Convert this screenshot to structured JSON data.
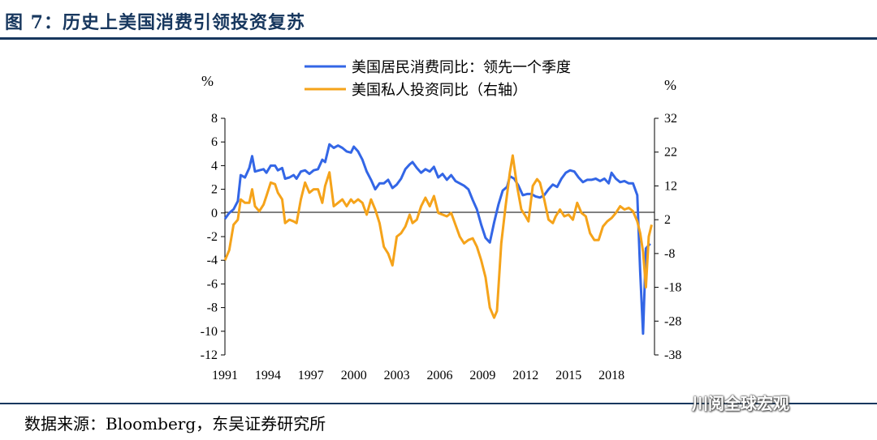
{
  "title": "图 7：历史上美国消费引领投资复苏",
  "source": "数据来源：Bloomberg，东吴证券研究所",
  "watermark": "川阅全球宏观",
  "colors": {
    "title": "#17375e",
    "consumption": "#3366e6",
    "investment": "#f5a31a"
  },
  "chart_data": {
    "type": "line",
    "title": "",
    "left_unit": "%",
    "right_unit": "%",
    "xlim": [
      1991,
      2021
    ],
    "x_ticks": [
      1991,
      1994,
      1997,
      2000,
      2003,
      2006,
      2009,
      2012,
      2015,
      2018
    ],
    "ylim_left": [
      -12,
      8
    ],
    "ylim_right": [
      -38,
      32
    ],
    "left_ticks": [
      8,
      6,
      4,
      2,
      0,
      -2,
      -4,
      -6,
      -8,
      -10,
      -12
    ],
    "right_ticks": [
      32,
      22,
      12,
      2,
      -8,
      -18,
      -28,
      -38
    ],
    "legend_position": "top-center",
    "series": [
      {
        "name": "美国居民消费同比：领先一个季度",
        "axis": "left",
        "color": "#3366e6",
        "points": [
          [
            1991.0,
            -0.5
          ],
          [
            1991.3,
            0.0
          ],
          [
            1991.6,
            0.3
          ],
          [
            1991.9,
            1.0
          ],
          [
            1992.1,
            3.2
          ],
          [
            1992.4,
            3.0
          ],
          [
            1992.7,
            3.8
          ],
          [
            1992.9,
            4.8
          ],
          [
            1993.1,
            3.5
          ],
          [
            1993.4,
            3.6
          ],
          [
            1993.7,
            3.7
          ],
          [
            1993.9,
            3.4
          ],
          [
            1994.2,
            4.0
          ],
          [
            1994.5,
            4.0
          ],
          [
            1994.7,
            3.6
          ],
          [
            1995.0,
            3.8
          ],
          [
            1995.2,
            2.9
          ],
          [
            1995.5,
            3.0
          ],
          [
            1995.8,
            3.2
          ],
          [
            1996.0,
            2.9
          ],
          [
            1996.3,
            3.5
          ],
          [
            1996.6,
            3.6
          ],
          [
            1996.9,
            3.3
          ],
          [
            1997.2,
            3.6
          ],
          [
            1997.5,
            3.7
          ],
          [
            1997.8,
            4.5
          ],
          [
            1998.0,
            4.3
          ],
          [
            1998.3,
            5.8
          ],
          [
            1998.6,
            5.5
          ],
          [
            1998.9,
            5.7
          ],
          [
            1999.2,
            5.5
          ],
          [
            1999.5,
            5.2
          ],
          [
            1999.8,
            5.1
          ],
          [
            2000.0,
            5.6
          ],
          [
            2000.3,
            5.2
          ],
          [
            2000.6,
            4.5
          ],
          [
            2000.9,
            3.5
          ],
          [
            2001.2,
            2.8
          ],
          [
            2001.5,
            2.0
          ],
          [
            2001.8,
            2.5
          ],
          [
            2002.1,
            2.5
          ],
          [
            2002.4,
            2.8
          ],
          [
            2002.7,
            2.1
          ],
          [
            2003.0,
            2.4
          ],
          [
            2003.3,
            2.9
          ],
          [
            2003.6,
            3.7
          ],
          [
            2003.9,
            4.1
          ],
          [
            2004.1,
            4.3
          ],
          [
            2004.4,
            3.8
          ],
          [
            2004.7,
            3.4
          ],
          [
            2005.0,
            3.7
          ],
          [
            2005.3,
            3.5
          ],
          [
            2005.6,
            3.9
          ],
          [
            2005.9,
            3.0
          ],
          [
            2006.2,
            3.3
          ],
          [
            2006.5,
            2.8
          ],
          [
            2006.8,
            3.2
          ],
          [
            2007.1,
            2.7
          ],
          [
            2007.4,
            2.5
          ],
          [
            2007.7,
            2.3
          ],
          [
            2008.0,
            2.0
          ],
          [
            2008.3,
            1.1
          ],
          [
            2008.6,
            0.3
          ],
          [
            2008.9,
            -1.0
          ],
          [
            2009.2,
            -2.1
          ],
          [
            2009.5,
            -2.5
          ],
          [
            2009.8,
            -0.8
          ],
          [
            2010.1,
            0.7
          ],
          [
            2010.4,
            1.9
          ],
          [
            2010.7,
            2.2
          ],
          [
            2010.9,
            3.1
          ],
          [
            2011.2,
            2.9
          ],
          [
            2011.5,
            2.3
          ],
          [
            2011.8,
            1.5
          ],
          [
            2012.1,
            1.6
          ],
          [
            2012.4,
            1.6
          ],
          [
            2012.7,
            1.4
          ],
          [
            2013.0,
            1.3
          ],
          [
            2013.3,
            1.5
          ],
          [
            2013.6,
            2.0
          ],
          [
            2013.9,
            2.4
          ],
          [
            2014.2,
            2.2
          ],
          [
            2014.5,
            2.9
          ],
          [
            2014.8,
            3.4
          ],
          [
            2015.1,
            3.6
          ],
          [
            2015.4,
            3.5
          ],
          [
            2015.7,
            3.0
          ],
          [
            2016.0,
            2.6
          ],
          [
            2016.3,
            2.8
          ],
          [
            2016.6,
            2.8
          ],
          [
            2016.9,
            2.9
          ],
          [
            2017.2,
            2.7
          ],
          [
            2017.5,
            2.9
          ],
          [
            2017.8,
            2.5
          ],
          [
            2018.0,
            3.4
          ],
          [
            2018.3,
            2.9
          ],
          [
            2018.6,
            2.6
          ],
          [
            2018.9,
            2.7
          ],
          [
            2019.2,
            2.5
          ],
          [
            2019.5,
            2.5
          ],
          [
            2019.8,
            1.5
          ],
          [
            2020.0,
            -5.0
          ],
          [
            2020.2,
            -10.2
          ],
          [
            2020.4,
            -3.0
          ],
          [
            2020.7,
            -2.6
          ]
        ]
      },
      {
        "name": "美国私人投资同比（右轴）",
        "axis": "right",
        "color": "#f5a31a",
        "points": [
          [
            1991.0,
            -10.0
          ],
          [
            1991.3,
            -7.0
          ],
          [
            1991.6,
            0.5
          ],
          [
            1991.9,
            2.0
          ],
          [
            1992.1,
            8.0
          ],
          [
            1992.4,
            7.0
          ],
          [
            1992.7,
            7.0
          ],
          [
            1992.9,
            11.0
          ],
          [
            1993.1,
            6.0
          ],
          [
            1993.4,
            4.5
          ],
          [
            1993.7,
            6.5
          ],
          [
            1993.9,
            9.0
          ],
          [
            1994.2,
            13.0
          ],
          [
            1994.5,
            12.5
          ],
          [
            1994.7,
            10.0
          ],
          [
            1995.0,
            8.0
          ],
          [
            1995.2,
            1.0
          ],
          [
            1995.5,
            2.0
          ],
          [
            1995.8,
            1.5
          ],
          [
            1996.0,
            1.0
          ],
          [
            1996.3,
            8.0
          ],
          [
            1996.6,
            13.0
          ],
          [
            1996.9,
            10.0
          ],
          [
            1997.2,
            11.0
          ],
          [
            1997.5,
            11.0
          ],
          [
            1997.8,
            7.0
          ],
          [
            1998.0,
            12.0
          ],
          [
            1998.3,
            16.0
          ],
          [
            1998.6,
            6.0
          ],
          [
            1998.9,
            7.0
          ],
          [
            1999.2,
            8.0
          ],
          [
            1999.5,
            6.0
          ],
          [
            1999.8,
            8.0
          ],
          [
            2000.0,
            7.0
          ],
          [
            2000.3,
            8.0
          ],
          [
            2000.6,
            7.0
          ],
          [
            2000.9,
            3.5
          ],
          [
            2001.2,
            8.0
          ],
          [
            2001.5,
            5.0
          ],
          [
            2001.8,
            1.0
          ],
          [
            2002.1,
            -6.0
          ],
          [
            2002.4,
            -8.0
          ],
          [
            2002.7,
            -11.5
          ],
          [
            2003.0,
            -3.0
          ],
          [
            2003.3,
            -2.0
          ],
          [
            2003.6,
            0.0
          ],
          [
            2003.9,
            3.5
          ],
          [
            2004.1,
            1.0
          ],
          [
            2004.4,
            2.0
          ],
          [
            2004.7,
            6.0
          ],
          [
            2005.0,
            8.5
          ],
          [
            2005.3,
            6.0
          ],
          [
            2005.6,
            9.0
          ],
          [
            2005.9,
            4.0
          ],
          [
            2006.2,
            3.5
          ],
          [
            2006.5,
            3.0
          ],
          [
            2006.8,
            4.0
          ],
          [
            2007.1,
            0.5
          ],
          [
            2007.4,
            -3.0
          ],
          [
            2007.7,
            -5.0
          ],
          [
            2008.0,
            -4.0
          ],
          [
            2008.3,
            -3.5
          ],
          [
            2008.6,
            -6.0
          ],
          [
            2008.9,
            -10.0
          ],
          [
            2009.2,
            -15.0
          ],
          [
            2009.5,
            -24.0
          ],
          [
            2009.8,
            -27.0
          ],
          [
            2010.0,
            -25.0
          ],
          [
            2010.3,
            -5.0
          ],
          [
            2010.6,
            6.0
          ],
          [
            2010.9,
            16.0
          ],
          [
            2011.1,
            21.0
          ],
          [
            2011.4,
            12.0
          ],
          [
            2011.7,
            5.0
          ],
          [
            2012.0,
            3.0
          ],
          [
            2012.2,
            1.5
          ],
          [
            2012.5,
            12.0
          ],
          [
            2012.8,
            14.0
          ],
          [
            2013.0,
            13.0
          ],
          [
            2013.3,
            8.0
          ],
          [
            2013.6,
            2.0
          ],
          [
            2013.9,
            1.0
          ],
          [
            2014.1,
            3.0
          ],
          [
            2014.4,
            5.0
          ],
          [
            2014.7,
            3.0
          ],
          [
            2015.0,
            3.5
          ],
          [
            2015.3,
            2.0
          ],
          [
            2015.6,
            7.0
          ],
          [
            2015.9,
            4.0
          ],
          [
            2016.2,
            3.0
          ],
          [
            2016.5,
            -2.0
          ],
          [
            2016.8,
            -4.0
          ],
          [
            2017.1,
            -4.0
          ],
          [
            2017.4,
            0.0
          ],
          [
            2017.7,
            1.5
          ],
          [
            2018.0,
            2.5
          ],
          [
            2018.3,
            4.0
          ],
          [
            2018.6,
            6.0
          ],
          [
            2018.9,
            5.0
          ],
          [
            2019.2,
            5.5
          ],
          [
            2019.5,
            4.5
          ],
          [
            2019.8,
            1.5
          ],
          [
            2020.0,
            -2.0
          ],
          [
            2020.2,
            -7.5
          ],
          [
            2020.4,
            -18.0
          ],
          [
            2020.6,
            -3.0
          ],
          [
            2020.8,
            0.5
          ]
        ]
      }
    ]
  }
}
